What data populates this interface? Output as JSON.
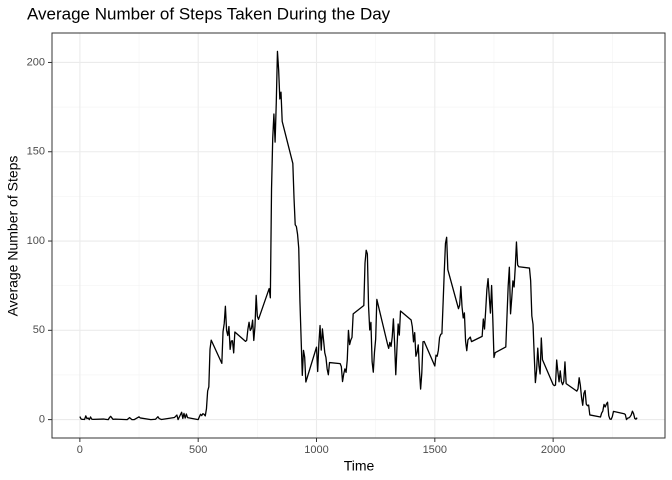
{
  "chart_data": {
    "type": "line",
    "title": "Average Number of Steps Taken During the Day",
    "x_label": "Time",
    "y_label": "Average Number of Steps",
    "color": "#000000",
    "grid": true,
    "xlim": [
      -117.75,
      2472.75
    ],
    "ylim": [
      -10.3,
      216.5
    ],
    "xticks": [
      0,
      500,
      1000,
      1500,
      2000
    ],
    "yticks": [
      0,
      50,
      100,
      150,
      200
    ],
    "minor_xticks": [
      250,
      750,
      1250,
      1750,
      2250
    ],
    "minor_yticks": [
      25,
      75,
      125,
      175
    ],
    "x": [
      0,
      5,
      10,
      15,
      20,
      25,
      30,
      35,
      40,
      45,
      50,
      55,
      100,
      110,
      120,
      125,
      130,
      140,
      150,
      200,
      210,
      220,
      230,
      250,
      255,
      300,
      320,
      330,
      335,
      345,
      400,
      410,
      415,
      430,
      435,
      440,
      445,
      450,
      455,
      500,
      505,
      510,
      515,
      520,
      525,
      530,
      535,
      540,
      545,
      550,
      555,
      600,
      605,
      610,
      615,
      620,
      625,
      630,
      635,
      640,
      645,
      650,
      655,
      700,
      705,
      710,
      715,
      720,
      725,
      730,
      735,
      740,
      745,
      750,
      755,
      800,
      805,
      810,
      815,
      820,
      825,
      830,
      835,
      840,
      845,
      850,
      855,
      900,
      905,
      910,
      915,
      920,
      925,
      930,
      935,
      940,
      945,
      950,
      955,
      1000,
      1005,
      1010,
      1015,
      1020,
      1025,
      1030,
      1035,
      1040,
      1045,
      1050,
      1055,
      1100,
      1105,
      1110,
      1115,
      1120,
      1125,
      1130,
      1135,
      1140,
      1145,
      1150,
      1155,
      1200,
      1205,
      1210,
      1215,
      1220,
      1225,
      1230,
      1235,
      1240,
      1245,
      1250,
      1255,
      1300,
      1305,
      1310,
      1315,
      1320,
      1325,
      1330,
      1335,
      1340,
      1345,
      1350,
      1355,
      1400,
      1405,
      1410,
      1415,
      1420,
      1425,
      1430,
      1435,
      1440,
      1445,
      1450,
      1455,
      1500,
      1505,
      1510,
      1515,
      1520,
      1525,
      1530,
      1535,
      1540,
      1545,
      1550,
      1555,
      1600,
      1605,
      1610,
      1615,
      1620,
      1625,
      1630,
      1635,
      1640,
      1645,
      1650,
      1655,
      1700,
      1705,
      1710,
      1715,
      1720,
      1725,
      1730,
      1735,
      1740,
      1745,
      1750,
      1755,
      1800,
      1805,
      1810,
      1815,
      1820,
      1825,
      1830,
      1835,
      1840,
      1845,
      1850,
      1855,
      1900,
      1905,
      1910,
      1915,
      1920,
      1925,
      1930,
      1935,
      1940,
      1945,
      1950,
      1955,
      2000,
      2005,
      2010,
      2015,
      2020,
      2025,
      2030,
      2035,
      2040,
      2045,
      2050,
      2055,
      2100,
      2105,
      2110,
      2115,
      2120,
      2125,
      2130,
      2135,
      2140,
      2145,
      2150,
      2155,
      2200,
      2205,
      2210,
      2215,
      2220,
      2225,
      2230,
      2235,
      2240,
      2245,
      2250,
      2255,
      2300,
      2305,
      2310,
      2315,
      2320,
      2325,
      2330,
      2335,
      2340,
      2345,
      2350,
      2355
    ],
    "values": [
      1.72,
      0.34,
      0.13,
      0.15,
      0.08,
      2.09,
      0.53,
      0.87,
      0,
      1.47,
      0.3,
      0.13,
      0.32,
      0.15,
      0,
      1.11,
      1.83,
      0.17,
      0.26,
      0,
      1.13,
      0,
      0,
      1.55,
      0.94,
      0,
      0.21,
      1.62,
      0.58,
      0.08,
      1.19,
      2.57,
      0,
      4.11,
      0.66,
      3.49,
      0.83,
      3.11,
      1.11,
      0,
      1.57,
      3.0,
      2.25,
      3.3,
      2.96,
      2.09,
      6.06,
      16.02,
      18.34,
      39.45,
      44.49,
      31.49,
      49.26,
      53.77,
      63.45,
      49.96,
      47.08,
      52.15,
      39.34,
      44.02,
      44.17,
      37.36,
      49.04,
      43.81,
      44.38,
      50.51,
      54.51,
      49.92,
      50.98,
      55.68,
      44.32,
      52.26,
      69.55,
      57.85,
      56.15,
      73.38,
      68.21,
      129.43,
      157.53,
      171.15,
      155.4,
      177.3,
      206.17,
      195.92,
      179.57,
      183.4,
      167.02,
      143.45,
      124.04,
      109.11,
      108.11,
      103.72,
      95.97,
      66.21,
      45.23,
      24.79,
      38.75,
      34.98,
      21.06,
      40.57,
      26.98,
      42.42,
      52.66,
      38.92,
      50.79,
      44.28,
      37.42,
      34.7,
      28.34,
      25.09,
      31.94,
      31.36,
      29.68,
      21.32,
      25.55,
      28.38,
      26.47,
      33.43,
      49.98,
      42.04,
      44.6,
      46.04,
      59.19,
      63.87,
      87.7,
      94.85,
      92.77,
      63.4,
      50.17,
      54.47,
      32.42,
      26.53,
      37.74,
      45.06,
      67.28,
      42.34,
      39.88,
      43.26,
      40.98,
      46.25,
      56.43,
      42.75,
      25.13,
      39.96,
      53.55,
      47.32,
      60.81,
      55.75,
      51.96,
      43.58,
      48.7,
      35.47,
      37.55,
      41.85,
      27.51,
      17.11,
      26.08,
      43.62,
      43.77,
      30.02,
      36.08,
      35.49,
      38.85,
      45.96,
      47.75,
      48.13,
      65.32,
      82.91,
      98.66,
      102.11,
      83.96,
      62.13,
      64.13,
      74.55,
      63.17,
      56.91,
      59.77,
      43.87,
      38.57,
      44.66,
      45.45,
      46.21,
      43.68,
      46.62,
      56.3,
      50.72,
      61.23,
      72.72,
      78.94,
      68.94,
      59.66,
      75.09,
      56.51,
      34.77,
      37.45,
      40.68,
      58.02,
      74.7,
      85.32,
      59.26,
      67.77,
      77.7,
      74.25,
      85.34,
      99.45,
      86.58,
      85.6,
      84.87,
      77.83,
      58.04,
      53.36,
      36.32,
      20.72,
      27.4,
      40.02,
      30.21,
      25.55,
      45.66,
      33.53,
      19.62,
      19.02,
      19.34,
      33.34,
      26.81,
      21.17,
      27.3,
      21.34,
      19.55,
      21.32,
      32.3,
      20.15,
      15.94,
      17.23,
      23.45,
      19.25,
      12.45,
      8.02,
      14.66,
      16.3,
      8.68,
      7.79,
      8.13,
      2.62,
      1.45,
      3.68,
      4.81,
      8.51,
      7.08,
      8.7,
      9.75,
      2.21,
      0.32,
      0.11,
      1.6,
      4.6,
      3.3,
      2.85,
      0,
      0.83,
      0.96,
      1.58,
      2.6,
      4.7,
      3.3,
      0.64,
      0.23,
      1.08
    ]
  }
}
